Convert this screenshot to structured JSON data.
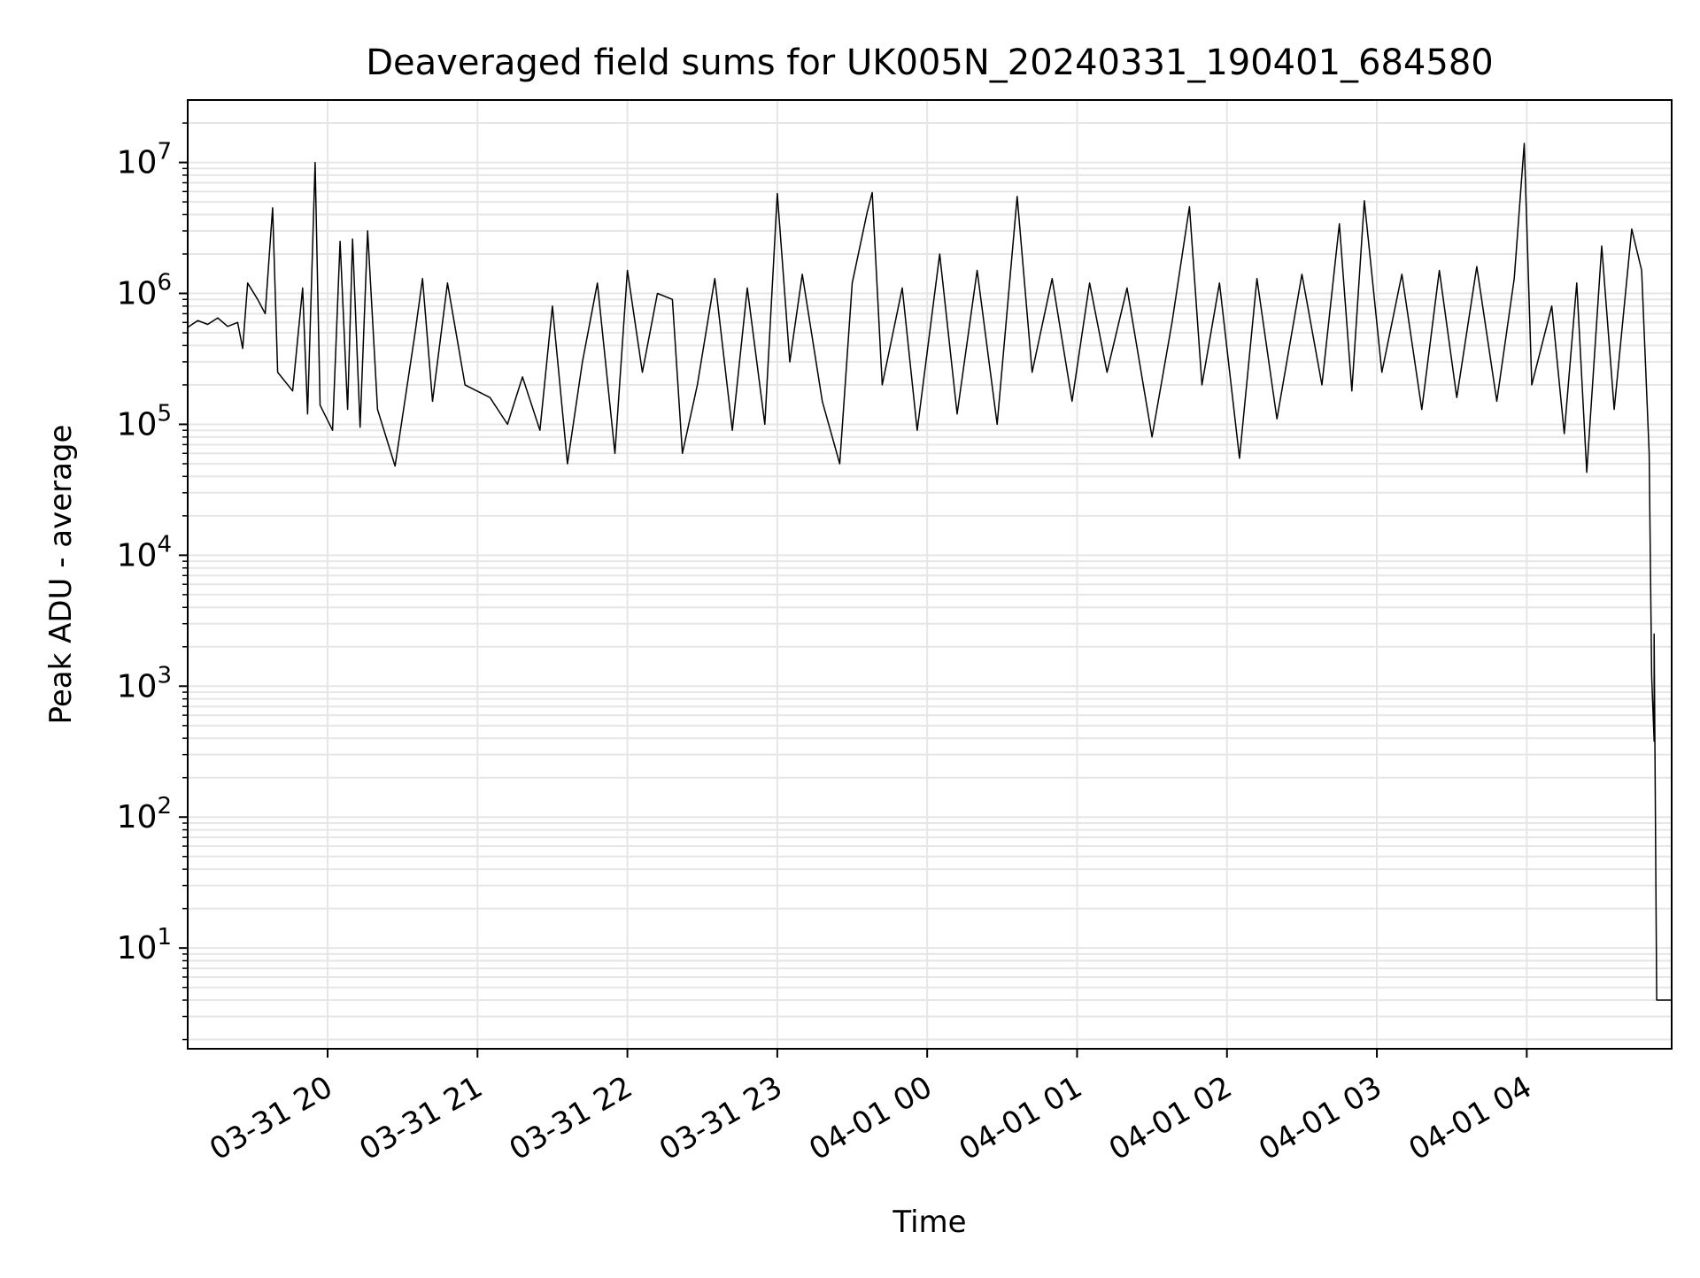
{
  "chart_data": {
    "type": "line",
    "title": "Deaveraged field sums for UK005N_20240331_190401_684580",
    "xlabel": "Time",
    "ylabel": "Peak ADU - average",
    "y_scale": "log",
    "ylim": [
      1.7,
      30000000
    ],
    "xlim": [
      "2024-03-31 19:04",
      "2024-04-01 04:58"
    ],
    "grid": true,
    "legend": "none",
    "x_ticks": [
      {
        "t": "2024-03-31 20:00",
        "label": "03-31 20"
      },
      {
        "t": "2024-03-31 21:00",
        "label": "03-31 21"
      },
      {
        "t": "2024-03-31 22:00",
        "label": "03-31 22"
      },
      {
        "t": "2024-03-31 23:00",
        "label": "03-31 23"
      },
      {
        "t": "2024-04-01 00:00",
        "label": "04-01 00"
      },
      {
        "t": "2024-04-01 01:00",
        "label": "04-01 01"
      },
      {
        "t": "2024-04-01 02:00",
        "label": "04-01 02"
      },
      {
        "t": "2024-04-01 03:00",
        "label": "04-01 03"
      },
      {
        "t": "2024-04-01 04:00",
        "label": "04-01 04"
      }
    ],
    "y_ticks": [
      {
        "value": 10,
        "base": "10",
        "exp": "1"
      },
      {
        "value": 100,
        "base": "10",
        "exp": "2"
      },
      {
        "value": 1000,
        "base": "10",
        "exp": "3"
      },
      {
        "value": 10000,
        "base": "10",
        "exp": "4"
      },
      {
        "value": 100000,
        "base": "10",
        "exp": "5"
      },
      {
        "value": 1000000,
        "base": "10",
        "exp": "6"
      },
      {
        "value": 10000000,
        "base": "10",
        "exp": "7"
      }
    ],
    "colors": {
      "line": "#000000",
      "grid": "#e6e6e6",
      "axes": "#000000"
    },
    "series": [
      {
        "points": [
          [
            "2024-03-31 19:04",
            550000
          ],
          [
            "2024-03-31 19:08",
            620000
          ],
          [
            "2024-03-31 19:12",
            580000
          ],
          [
            "2024-03-31 19:16",
            650000
          ],
          [
            "2024-03-31 19:20",
            560000
          ],
          [
            "2024-03-31 19:24",
            600000
          ],
          [
            "2024-03-31 19:26",
            380000
          ],
          [
            "2024-03-31 19:28",
            1200000
          ],
          [
            "2024-03-31 19:32",
            900000
          ],
          [
            "2024-03-31 19:35",
            700000
          ],
          [
            "2024-03-31 19:38",
            4500000
          ],
          [
            "2024-03-31 19:40",
            250000
          ],
          [
            "2024-03-31 19:46",
            180000
          ],
          [
            "2024-03-31 19:50",
            1100000
          ],
          [
            "2024-03-31 19:52",
            120000
          ],
          [
            "2024-03-31 19:55",
            10000000
          ],
          [
            "2024-03-31 19:57",
            140000
          ],
          [
            "2024-03-31 20:02",
            90000
          ],
          [
            "2024-03-31 20:05",
            2500000
          ],
          [
            "2024-03-31 20:08",
            130000
          ],
          [
            "2024-03-31 20:10",
            2600000
          ],
          [
            "2024-03-31 20:13",
            95000
          ],
          [
            "2024-03-31 20:16",
            3000000
          ],
          [
            "2024-03-31 20:20",
            130000
          ],
          [
            "2024-03-31 20:27",
            48000
          ],
          [
            "2024-03-31 20:35",
            500000
          ],
          [
            "2024-03-31 20:38",
            1300000
          ],
          [
            "2024-03-31 20:42",
            150000
          ],
          [
            "2024-03-31 20:48",
            1200000
          ],
          [
            "2024-03-31 20:55",
            200000
          ],
          [
            "2024-03-31 21:05",
            160000
          ],
          [
            "2024-03-31 21:12",
            100000
          ],
          [
            "2024-03-31 21:18",
            230000
          ],
          [
            "2024-03-31 21:25",
            90000
          ],
          [
            "2024-03-31 21:30",
            800000
          ],
          [
            "2024-03-31 21:36",
            50000
          ],
          [
            "2024-03-31 21:42",
            300000
          ],
          [
            "2024-03-31 21:48",
            1200000
          ],
          [
            "2024-03-31 21:55",
            60000
          ],
          [
            "2024-03-31 22:00",
            1500000
          ],
          [
            "2024-03-31 22:06",
            250000
          ],
          [
            "2024-03-31 22:12",
            1000000
          ],
          [
            "2024-03-31 22:18",
            900000
          ],
          [
            "2024-03-31 22:22",
            60000
          ],
          [
            "2024-03-31 22:28",
            200000
          ],
          [
            "2024-03-31 22:35",
            1300000
          ],
          [
            "2024-03-31 22:42",
            90000
          ],
          [
            "2024-03-31 22:48",
            1100000
          ],
          [
            "2024-03-31 22:55",
            100000
          ],
          [
            "2024-03-31 23:00",
            5800000
          ],
          [
            "2024-03-31 23:05",
            300000
          ],
          [
            "2024-03-31 23:10",
            1400000
          ],
          [
            "2024-03-31 23:18",
            150000
          ],
          [
            "2024-03-31 23:25",
            50000
          ],
          [
            "2024-03-31 23:30",
            1200000
          ],
          [
            "2024-03-31 23:36",
            4200000
          ],
          [
            "2024-03-31 23:38",
            5900000
          ],
          [
            "2024-03-31 23:42",
            200000
          ],
          [
            "2024-03-31 23:50",
            1100000
          ],
          [
            "2024-03-31 23:56",
            90000
          ],
          [
            "2024-04-01 00:05",
            2000000
          ],
          [
            "2024-04-01 00:12",
            120000
          ],
          [
            "2024-04-01 00:20",
            1500000
          ],
          [
            "2024-04-01 00:28",
            100000
          ],
          [
            "2024-04-01 00:36",
            5500000
          ],
          [
            "2024-04-01 00:42",
            250000
          ],
          [
            "2024-04-01 00:50",
            1300000
          ],
          [
            "2024-04-01 00:58",
            150000
          ],
          [
            "2024-04-01 01:05",
            1200000
          ],
          [
            "2024-04-01 01:12",
            250000
          ],
          [
            "2024-04-01 01:20",
            1100000
          ],
          [
            "2024-04-01 01:30",
            80000
          ],
          [
            "2024-04-01 01:38",
            600000
          ],
          [
            "2024-04-01 01:45",
            4600000
          ],
          [
            "2024-04-01 01:50",
            200000
          ],
          [
            "2024-04-01 01:57",
            1200000
          ],
          [
            "2024-04-01 02:05",
            55000
          ],
          [
            "2024-04-01 02:12",
            1300000
          ],
          [
            "2024-04-01 02:20",
            110000
          ],
          [
            "2024-04-01 02:30",
            1400000
          ],
          [
            "2024-04-01 02:38",
            200000
          ],
          [
            "2024-04-01 02:45",
            3400000
          ],
          [
            "2024-04-01 02:50",
            180000
          ],
          [
            "2024-04-01 02:55",
            5100000
          ],
          [
            "2024-04-01 03:02",
            250000
          ],
          [
            "2024-04-01 03:10",
            1400000
          ],
          [
            "2024-04-01 03:18",
            130000
          ],
          [
            "2024-04-01 03:25",
            1500000
          ],
          [
            "2024-04-01 03:32",
            160000
          ],
          [
            "2024-04-01 03:40",
            1600000
          ],
          [
            "2024-04-01 03:48",
            150000
          ],
          [
            "2024-04-01 03:55",
            1300000
          ],
          [
            "2024-04-01 03:59",
            14000000
          ],
          [
            "2024-04-01 04:02",
            200000
          ],
          [
            "2024-04-01 04:10",
            800000
          ],
          [
            "2024-04-01 04:15",
            85000
          ],
          [
            "2024-04-01 04:20",
            1200000
          ],
          [
            "2024-04-01 04:24",
            43000
          ],
          [
            "2024-04-01 04:30",
            2300000
          ],
          [
            "2024-04-01 04:35",
            130000
          ],
          [
            "2024-04-01 04:42",
            3100000
          ],
          [
            "2024-04-01 04:46",
            1500000
          ],
          [
            "2024-04-01 04:49",
            60000
          ],
          [
            "2024-04-01 04:50",
            1200
          ],
          [
            "2024-04-01 04:51",
            380
          ],
          [
            "2024-04-01 04:51",
            2500
          ],
          [
            "2024-04-01 04:52",
            4
          ],
          [
            "2024-04-01 04:58",
            4
          ]
        ]
      }
    ]
  }
}
